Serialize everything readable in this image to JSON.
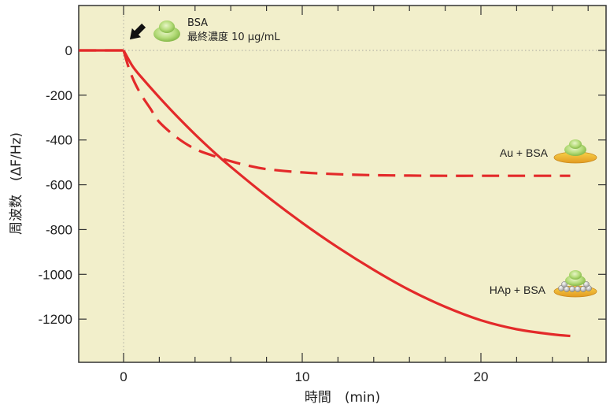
{
  "chart_data": {
    "type": "line",
    "xlabel": "時間　(min)",
    "ylabel": "周波数　(ΔF/Hz)",
    "xlim": [
      -2.5,
      27
    ],
    "ylim": [
      -1400,
      200
    ],
    "x_ticks": [
      0,
      10,
      20
    ],
    "y_ticks": [
      0,
      -200,
      -400,
      -600,
      -800,
      -1000,
      -1200
    ],
    "grid": false,
    "annotation": {
      "title": "BSA",
      "text": "最終濃度 10 μg/mL",
      "x": 0
    },
    "series": [
      {
        "name": "Au + BSA",
        "style": "dashed",
        "color": "#e32a2a",
        "x": [
          -2.5,
          0,
          0.3,
          0.6,
          1,
          1.5,
          2,
          3,
          4,
          5,
          6,
          7,
          8,
          10,
          12,
          14,
          16,
          18,
          20,
          22,
          25
        ],
        "y": [
          0,
          0,
          -80,
          -140,
          -200,
          -260,
          -320,
          -390,
          -440,
          -470,
          -495,
          -515,
          -530,
          -545,
          -553,
          -557,
          -559,
          -560,
          -560,
          -560,
          -560
        ]
      },
      {
        "name": "HAp + BSA",
        "style": "solid",
        "color": "#e32a2a",
        "x": [
          -2.5,
          0,
          0.5,
          1,
          2,
          3,
          4,
          5,
          6,
          8,
          10,
          12,
          14,
          16,
          18,
          20,
          22,
          24,
          25
        ],
        "y": [
          0,
          0,
          -70,
          -120,
          -210,
          -295,
          -375,
          -450,
          -520,
          -650,
          -770,
          -880,
          -980,
          -1070,
          -1145,
          -1205,
          -1245,
          -1268,
          -1275
        ]
      }
    ]
  }
}
